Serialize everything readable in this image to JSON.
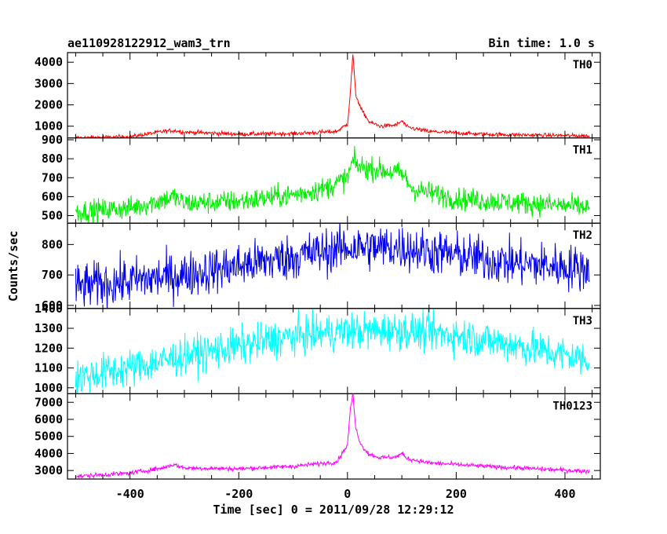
{
  "header": {
    "title": "ae110928122912_wam3_trn",
    "bin_time": "Bin time: 1.0 s"
  },
  "chart_data": {
    "type": "line",
    "xlabel": "Time [sec] 0 = 2011/09/28 12:29:12",
    "ylabel": "Counts/sec",
    "xlim": [
      -515,
      465
    ],
    "x_ticks": [
      -400,
      -200,
      0,
      200,
      400
    ],
    "x_range_data": [
      -500,
      445
    ],
    "panels": [
      {
        "name": "TH0",
        "color": "#ff0000",
        "ylim": [
          450,
          4450
        ],
        "y_ticks": [
          1000,
          2000,
          3000,
          4000
        ],
        "baseline": [
          [
            -500,
            450
          ],
          [
            -400,
            500
          ],
          [
            -340,
            750
          ],
          [
            -320,
            800
          ],
          [
            -300,
            720
          ],
          [
            -200,
            630
          ],
          [
            -100,
            650
          ],
          [
            -20,
            750
          ],
          [
            0,
            1100
          ],
          [
            5,
            2500
          ],
          [
            10,
            4400
          ],
          [
            15,
            2500
          ],
          [
            25,
            1800
          ],
          [
            40,
            1200
          ],
          [
            60,
            1000
          ],
          [
            90,
            1050
          ],
          [
            100,
            1250
          ],
          [
            110,
            950
          ],
          [
            150,
            750
          ],
          [
            250,
            620
          ],
          [
            445,
            540
          ]
        ],
        "noise": 50
      },
      {
        "name": "TH1",
        "color": "#00ee00",
        "ylim": [
          460,
          910
        ],
        "y_ticks": [
          500,
          600,
          700,
          800,
          900
        ],
        "baseline": [
          [
            -500,
            520
          ],
          [
            -400,
            540
          ],
          [
            -330,
            590
          ],
          [
            -320,
            600
          ],
          [
            -300,
            565
          ],
          [
            -200,
            575
          ],
          [
            -100,
            610
          ],
          [
            -40,
            645
          ],
          [
            0,
            700
          ],
          [
            10,
            790
          ],
          [
            20,
            760
          ],
          [
            60,
            740
          ],
          [
            100,
            720
          ],
          [
            120,
            640
          ],
          [
            200,
            590
          ],
          [
            300,
            570
          ],
          [
            445,
            545
          ]
        ],
        "noise": 30
      },
      {
        "name": "TH2",
        "color": "#0000ee",
        "ylim": [
          590,
          870
        ],
        "y_ticks": [
          600,
          700,
          800
        ],
        "baseline": [
          [
            -500,
            660
          ],
          [
            -400,
            680
          ],
          [
            -300,
            700
          ],
          [
            -200,
            730
          ],
          [
            -100,
            760
          ],
          [
            0,
            790
          ],
          [
            100,
            790
          ],
          [
            200,
            765
          ],
          [
            300,
            740
          ],
          [
            445,
            720
          ]
        ],
        "noise": 38
      },
      {
        "name": "TH3",
        "color": "#00ffff",
        "ylim": [
          970,
          1400
        ],
        "y_ticks": [
          1000,
          1100,
          1200,
          1300,
          1400
        ],
        "baseline": [
          [
            -500,
            1050
          ],
          [
            -400,
            1100
          ],
          [
            -300,
            1160
          ],
          [
            -200,
            1210
          ],
          [
            -100,
            1260
          ],
          [
            0,
            1285
          ],
          [
            100,
            1290
          ],
          [
            200,
            1265
          ],
          [
            300,
            1220
          ],
          [
            445,
            1140
          ]
        ],
        "noise": 48
      },
      {
        "name": "TH0123",
        "color": "#ff00ff",
        "ylim": [
          2500,
          7500
        ],
        "y_ticks": [
          3000,
          4000,
          5000,
          6000,
          7000
        ],
        "baseline": [
          [
            -500,
            2650
          ],
          [
            -400,
            2850
          ],
          [
            -340,
            3150
          ],
          [
            -320,
            3350
          ],
          [
            -300,
            3150
          ],
          [
            -200,
            3100
          ],
          [
            -100,
            3250
          ],
          [
            -20,
            3500
          ],
          [
            0,
            4500
          ],
          [
            5,
            6500
          ],
          [
            10,
            7500
          ],
          [
            15,
            5500
          ],
          [
            25,
            4500
          ],
          [
            40,
            3950
          ],
          [
            60,
            3750
          ],
          [
            90,
            3800
          ],
          [
            100,
            4000
          ],
          [
            110,
            3700
          ],
          [
            150,
            3450
          ],
          [
            250,
            3250
          ],
          [
            445,
            2950
          ]
        ],
        "noise": 65
      }
    ]
  }
}
